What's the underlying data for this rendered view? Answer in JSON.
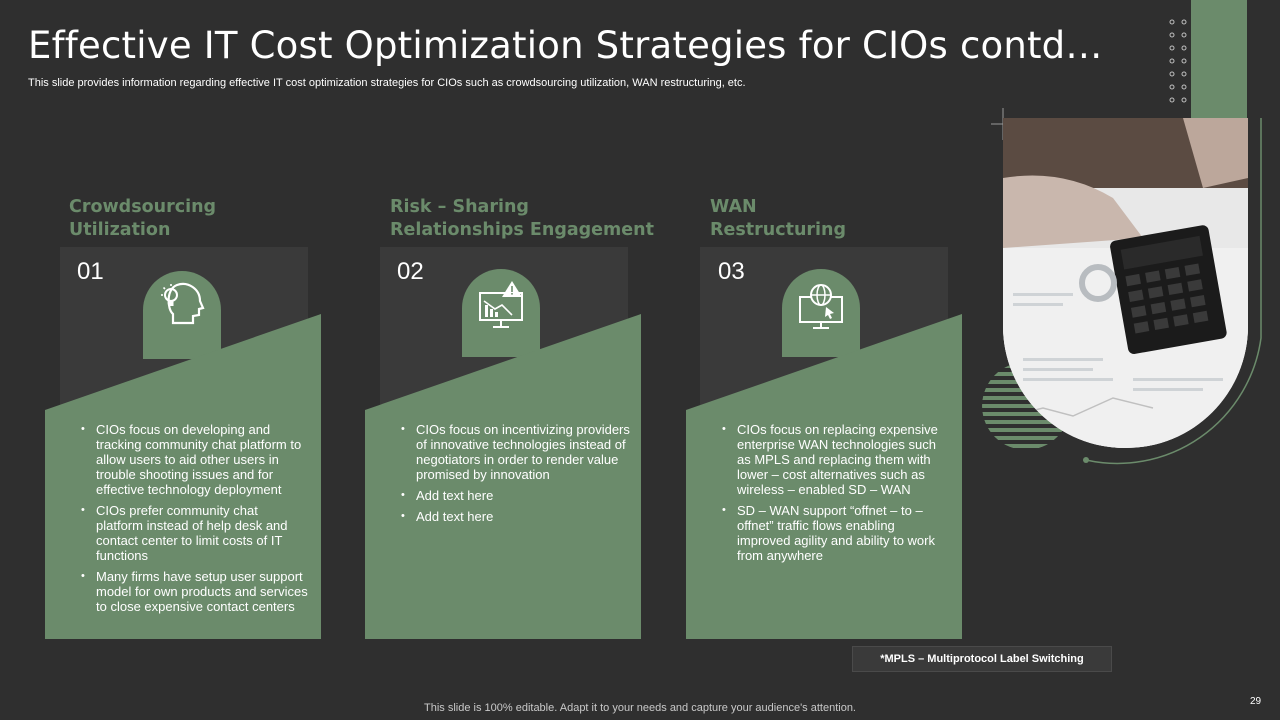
{
  "header": {
    "title": "Effective IT Cost Optimization Strategies for CIOs contd…",
    "subtitle": "This slide provides information regarding effective IT  cost optimization strategies for CIOs such as crowdsourcing utilization, WAN restructuring, etc."
  },
  "colors": {
    "accent": "#6b8b6b",
    "background": "#2f2f2f",
    "card": "#3a3a3a"
  },
  "cards": [
    {
      "heading_line1": "Crowdsourcing",
      "heading_line2": "Utilization",
      "number": "01",
      "icon": "head-lightbulb-icon",
      "bullets": [
        "CIOs focus on developing and tracking community chat platform to allow users to aid other users in trouble shooting issues and for effective technology deployment",
        "CIOs prefer community chat platform instead of help desk and contact center to limit costs of IT functions",
        "Many firms have setup user support model for own products and services to close expensive contact centers"
      ]
    },
    {
      "heading_line1": "Risk – Sharing",
      "heading_line2": "Relationships Engagement",
      "number": "02",
      "icon": "chart-warning-icon",
      "bullets": [
        "CIOs focus on incentivizing providers of innovative technologies instead of negotiators in order to render value promised by innovation",
        "Add text here",
        "Add text here"
      ]
    },
    {
      "heading_line1": "WAN",
      "heading_line2": "Restructuring",
      "number": "03",
      "icon": "globe-monitor-icon",
      "bullets": [
        "CIOs focus on replacing expensive enterprise WAN technologies such as MPLS and replacing them with lower – cost alternatives such as wireless – enabled SD – WAN",
        "SD – WAN support “offnet – to – offnet” traffic flows enabling improved agility and ability to work from anywhere"
      ]
    }
  ],
  "footnote": "*MPLS – Multiprotocol  Label Switching",
  "footer": "This slide is 100% editable. Adapt it to your needs and capture your audience's attention.",
  "page_number": "29"
}
